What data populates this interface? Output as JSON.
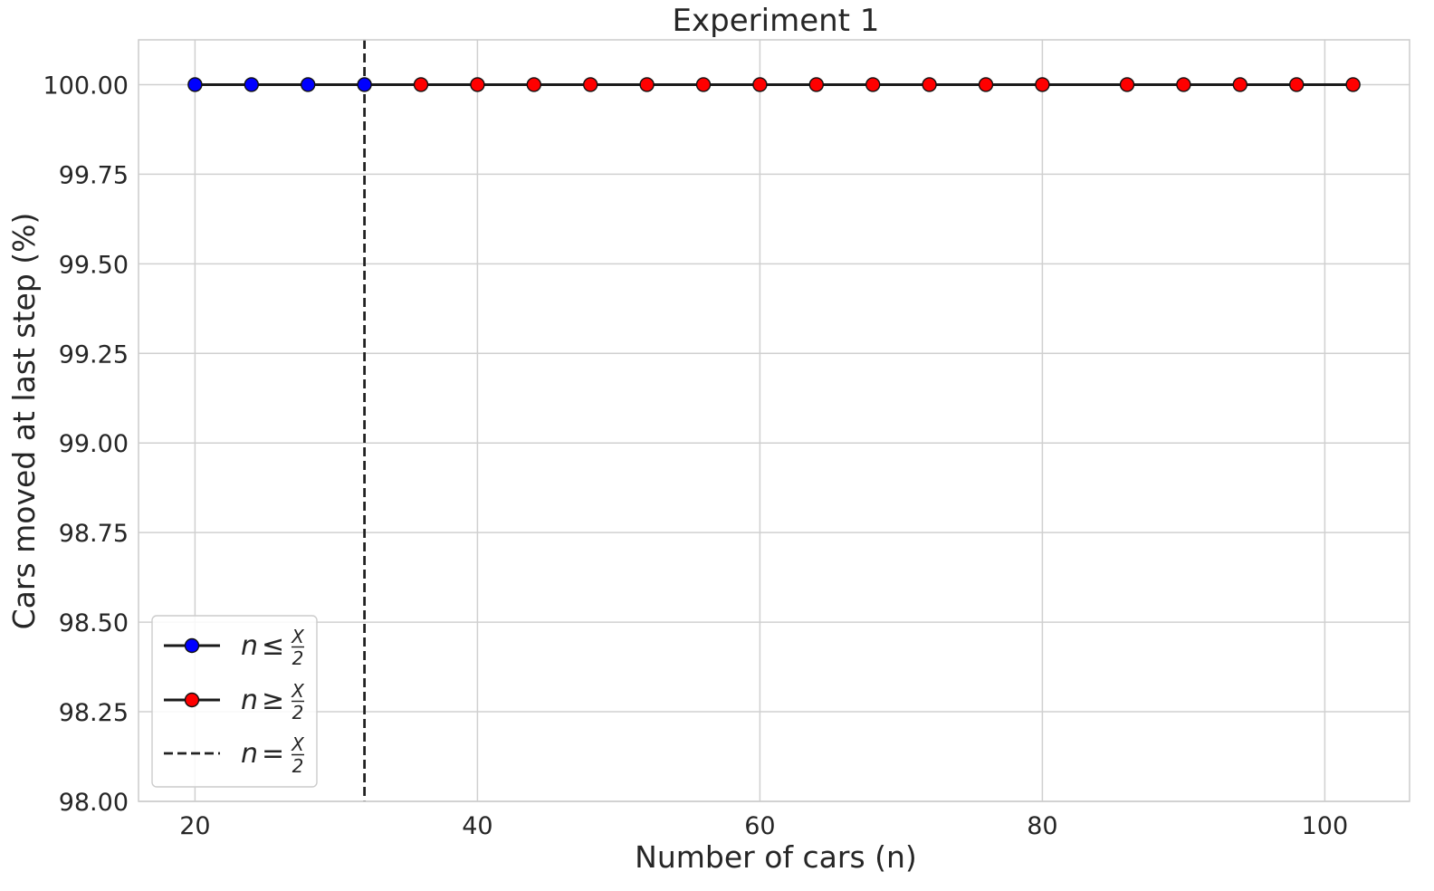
{
  "chart_data": {
    "type": "line",
    "title": "Experiment 1",
    "xlabel": "Number of cars (n)",
    "ylabel": "Cars moved at last step (%)",
    "xlim": [
      16,
      106
    ],
    "ylim": [
      98.0,
      100.125
    ],
    "xticks": [
      20,
      40,
      60,
      80,
      100
    ],
    "yticks": [
      98.0,
      98.25,
      98.5,
      98.75,
      99.0,
      99.25,
      99.5,
      99.75,
      100.0
    ],
    "xtick_labels": [
      "20",
      "40",
      "60",
      "80",
      "100"
    ],
    "ytick_labels": [
      "98.00",
      "98.25",
      "98.50",
      "98.75",
      "99.00",
      "99.25",
      "99.50",
      "99.75",
      "100.00"
    ],
    "grid": true,
    "legend_position": "lower-left",
    "vline": {
      "x": 32,
      "style": "dashed",
      "color": "#222222"
    },
    "series": [
      {
        "marker_color": "#0000ff",
        "x": [
          20,
          24,
          28,
          32
        ],
        "y": [
          100,
          100,
          100,
          100
        ]
      },
      {
        "marker_color": "#ff0000",
        "x": [
          36,
          40,
          44,
          48,
          52,
          56,
          60,
          64,
          68,
          72,
          76,
          80,
          86,
          90,
          94,
          98,
          102
        ],
        "y": [
          100,
          100,
          100,
          100,
          100,
          100,
          100,
          100,
          100,
          100,
          100,
          100,
          100,
          100,
          100,
          100,
          100
        ]
      }
    ],
    "legend": [
      {
        "var": "n",
        "op": "≤",
        "num": "X",
        "den": "2",
        "style": "marker",
        "color": "#0000ff"
      },
      {
        "var": "n",
        "op": "≥",
        "num": "X",
        "den": "2",
        "style": "marker",
        "color": "#ff0000"
      },
      {
        "var": "n",
        "op": "=",
        "num": "X",
        "den": "2",
        "style": "dashed",
        "color": "#222222"
      }
    ]
  }
}
